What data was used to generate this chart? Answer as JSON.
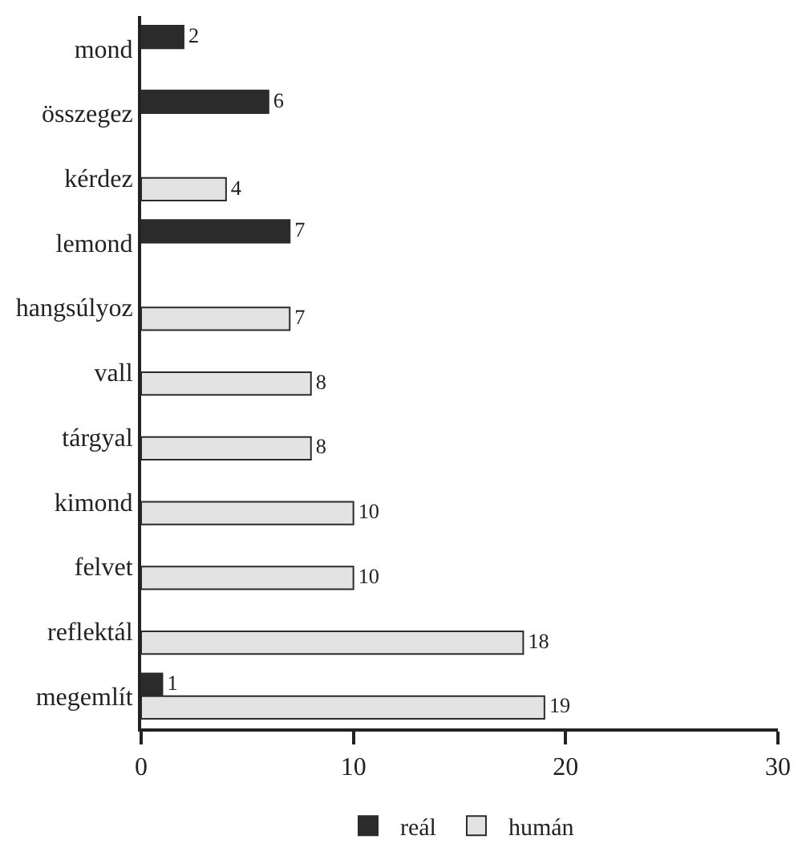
{
  "chart_data": {
    "type": "bar",
    "orientation": "horizontal",
    "categories": [
      "mond",
      "összegez",
      "kérdez",
      "lemond",
      "hangsúlyoz",
      "vall",
      "tárgyal",
      "kimond",
      "felvet",
      "reflektál",
      "megemlít"
    ],
    "series": [
      {
        "name": "reál",
        "color": "#2b2b2b",
        "values": [
          2,
          6,
          null,
          7,
          null,
          null,
          null,
          null,
          null,
          null,
          1
        ]
      },
      {
        "name": "humán",
        "color": "#e3e3e3",
        "values": [
          null,
          null,
          4,
          null,
          7,
          8,
          8,
          10,
          10,
          18,
          19
        ]
      }
    ],
    "xlim": [
      0,
      30
    ],
    "xticks": [
      0,
      10,
      20,
      30
    ],
    "grid": false,
    "legend": "bottom",
    "data_labels": true
  }
}
